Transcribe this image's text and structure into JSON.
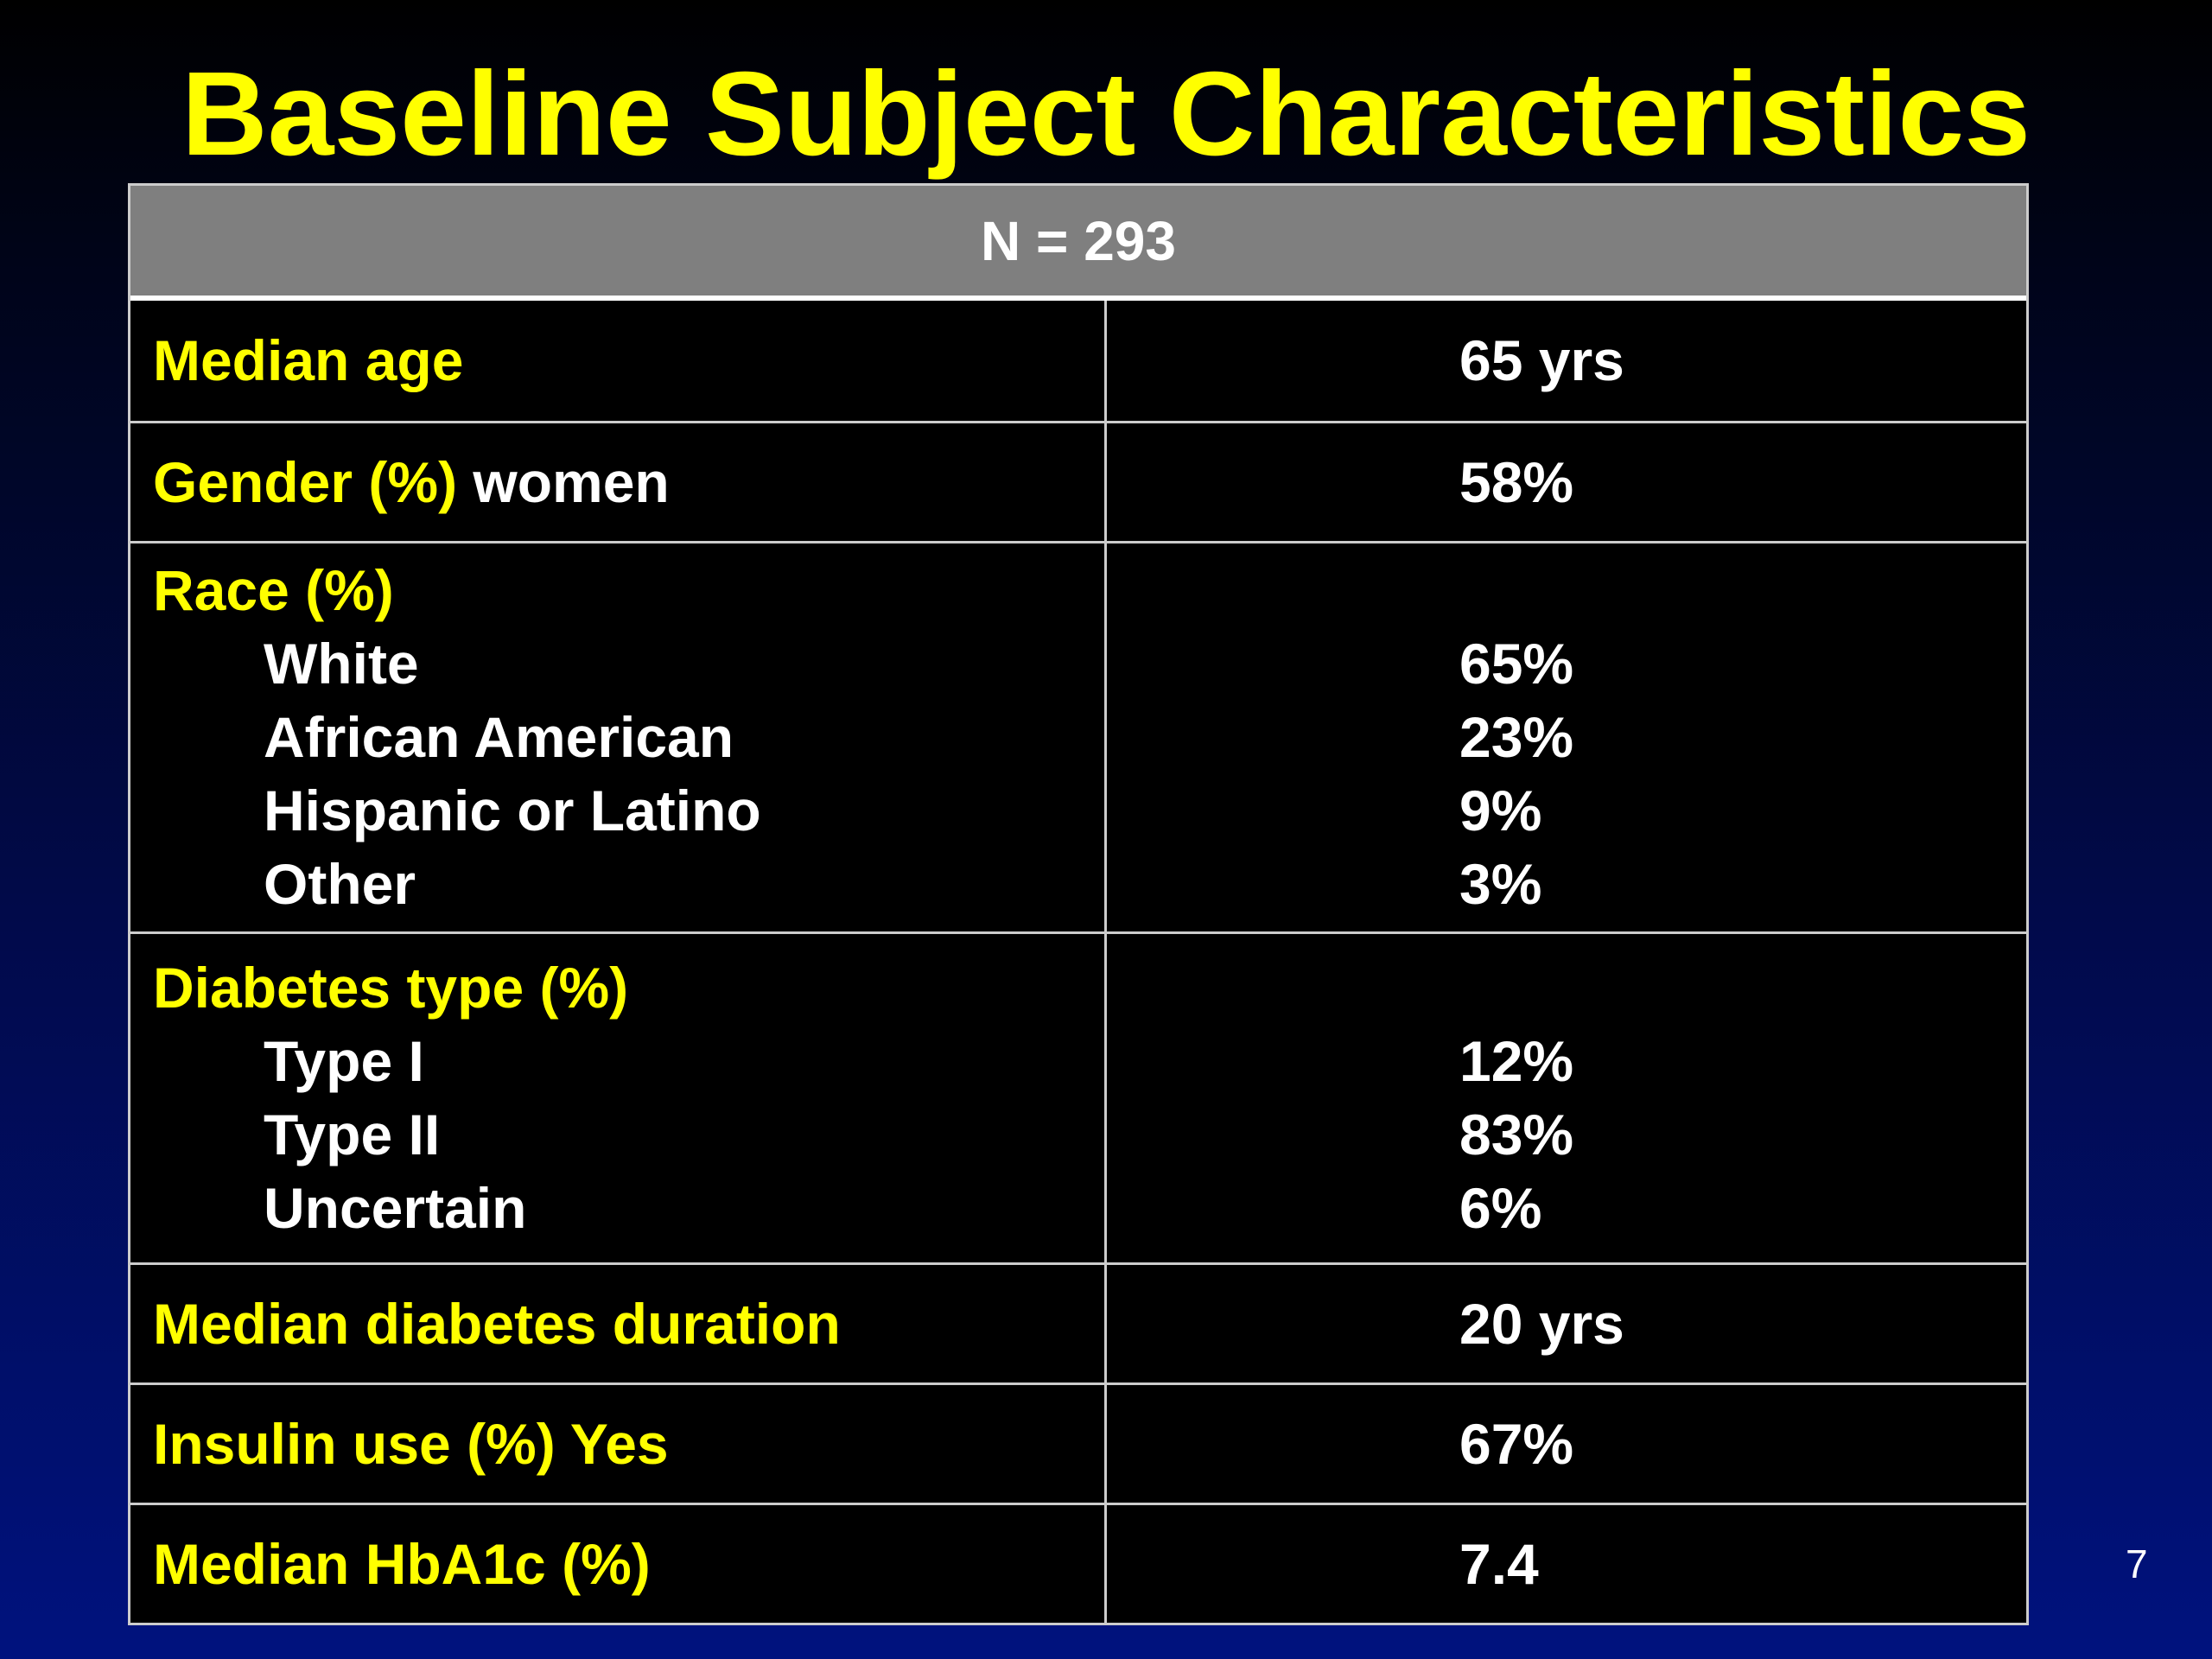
{
  "title": "Baseline Subject Characteristics",
  "table": {
    "header": "N = 293",
    "rows": [
      {
        "label": "Median age",
        "label_suffix": "",
        "value": "65 yrs"
      },
      {
        "label": "Gender (%)",
        "label_suffix": " women",
        "value": "58%"
      },
      {
        "label": "Race (%)",
        "sub": [
          {
            "label": "White",
            "value": "65%"
          },
          {
            "label": "African American",
            "value": "23%"
          },
          {
            "label": "Hispanic or Latino",
            "value": "9%"
          },
          {
            "label": "Other",
            "value": "3%"
          }
        ]
      },
      {
        "label": "Diabetes type (%)",
        "sub": [
          {
            "label": "Type I",
            "value": "12%"
          },
          {
            "label": "Type II",
            "value": "83%"
          },
          {
            "label": "Uncertain",
            "value": "6%"
          }
        ]
      },
      {
        "label": "Median diabetes duration",
        "label_suffix": "",
        "value": "20 yrs"
      },
      {
        "label": "Insulin use (%) Yes",
        "label_suffix": "",
        "value": "67%"
      },
      {
        "label": "Median HbA1c (%)",
        "label_suffix": "",
        "value": "7.4"
      }
    ]
  },
  "page_number": "7",
  "colors": {
    "title": "#ffff00",
    "label": "#ffff00",
    "value": "#ffffff",
    "header_bg": "#7f7f7f",
    "background_top": "#000000",
    "background_bottom": "#00127e"
  }
}
